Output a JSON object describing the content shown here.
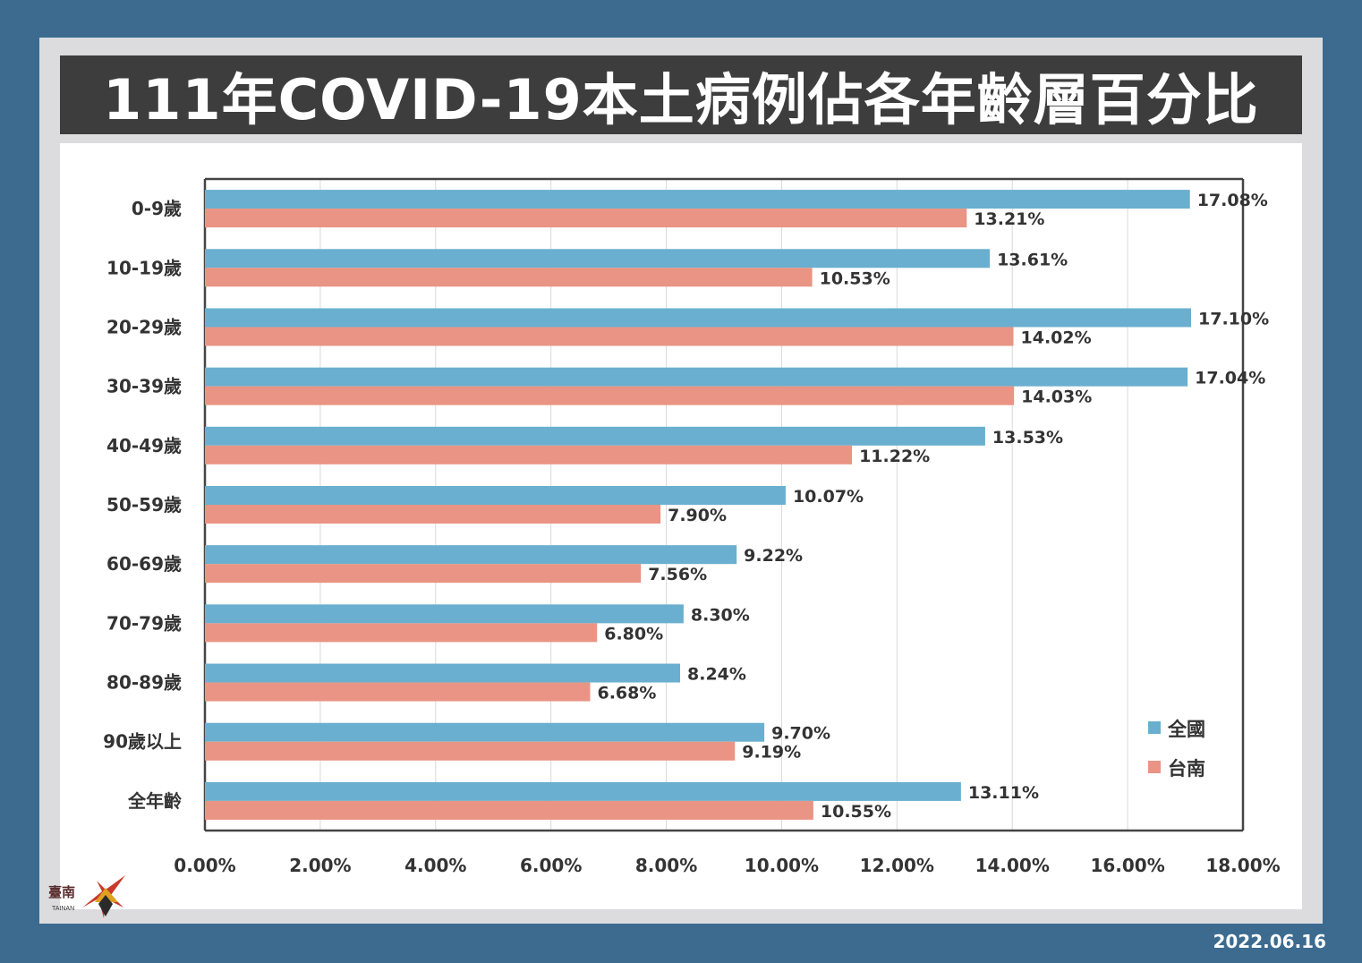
{
  "header": {
    "title": "111年COVID-19本土病例佔各年齡層百分比"
  },
  "footer": {
    "date": "2022.06.16"
  },
  "logo": {
    "text": "臺南",
    "sub": "TAINAN"
  },
  "colors": {
    "national": "#6aafcf",
    "tainan": "#e99484",
    "frame": "#dcdcdf",
    "background": "#3c6b8f"
  },
  "chart_data": {
    "type": "bar",
    "orientation": "horizontal",
    "categories": [
      "0-9歲",
      "10-19歲",
      "20-29歲",
      "30-39歲",
      "40-49歲",
      "50-59歲",
      "60-69歲",
      "70-79歲",
      "80-89歲",
      "90歲以上",
      "全年齡"
    ],
    "series": [
      {
        "name": "全國",
        "values": [
          17.08,
          13.61,
          17.1,
          17.04,
          13.53,
          10.07,
          9.22,
          8.3,
          8.24,
          9.7,
          13.11
        ],
        "labels": [
          "17.08%",
          "13.61%",
          "17.10%",
          "17.04%",
          "13.53%",
          "10.07%",
          "9.22%",
          "8.30%",
          "8.24%",
          "9.70%",
          "13.11%"
        ]
      },
      {
        "name": "台南",
        "values": [
          13.21,
          10.53,
          14.02,
          14.03,
          11.22,
          7.9,
          7.56,
          6.8,
          6.68,
          9.19,
          10.55
        ],
        "labels": [
          "13.21%",
          "10.53%",
          "14.02%",
          "14.03%",
          "11.22%",
          "7.90%",
          "7.56%",
          "6.80%",
          "6.68%",
          "9.19%",
          "10.55%"
        ]
      }
    ],
    "xlim": [
      0,
      18
    ],
    "xticks": [
      0,
      2,
      4,
      6,
      8,
      10,
      12,
      14,
      16,
      18
    ],
    "xtick_labels": [
      "0.00%",
      "2.00%",
      "4.00%",
      "6.00%",
      "8.00%",
      "10.00%",
      "12.00%",
      "14.00%",
      "16.00%",
      "18.00%"
    ],
    "grid": "vertical",
    "legend_position": "bottom-right"
  }
}
